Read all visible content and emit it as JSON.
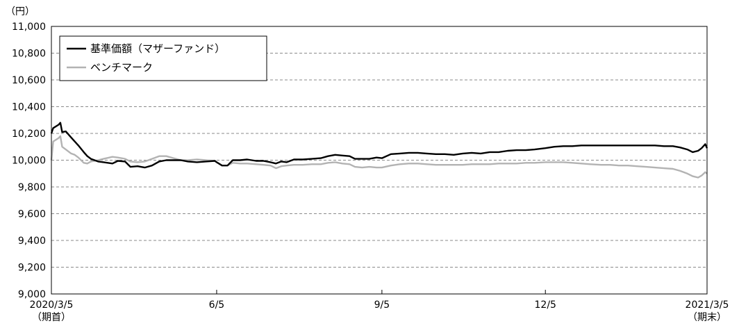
{
  "chart_data": {
    "type": "line",
    "ylabel": "（円）",
    "ylim": [
      9000,
      11000
    ],
    "yticks": [
      9000,
      9200,
      9400,
      9600,
      9800,
      10000,
      10200,
      10400,
      10600,
      10800,
      11000
    ],
    "ytick_labels": [
      "9,000",
      "9,200",
      "9,400",
      "9,600",
      "9,800",
      "10,000",
      "10,200",
      "10,400",
      "10,600",
      "10,800",
      "11,000"
    ],
    "xlim": [
      "2020-03-05",
      "2021-03-05"
    ],
    "xticks": [
      {
        "date": "2020-03-05",
        "label": "2020/3/5",
        "sublabel": "（期首）"
      },
      {
        "date": "2020-06-05",
        "label": "6/5",
        "sublabel": ""
      },
      {
        "date": "2020-09-05",
        "label": "9/5",
        "sublabel": ""
      },
      {
        "date": "2020-12-05",
        "label": "12/5",
        "sublabel": ""
      },
      {
        "date": "2021-03-05",
        "label": "2021/3/5",
        "sublabel": "（期末）"
      }
    ],
    "grid": "horizontal dashed",
    "legend_position": "top-left",
    "series": [
      {
        "name": "基準価額（マザーファンド）",
        "color": "#000000",
        "points": [
          [
            "2020-03-05",
            10200
          ],
          [
            "2020-03-06",
            10240
          ],
          [
            "2020-03-09",
            10265
          ],
          [
            "2020-03-10",
            10280
          ],
          [
            "2020-03-11",
            10210
          ],
          [
            "2020-03-13",
            10215
          ],
          [
            "2020-03-16",
            10170
          ],
          [
            "2020-03-18",
            10140
          ],
          [
            "2020-03-20",
            10110
          ],
          [
            "2020-03-23",
            10060
          ],
          [
            "2020-03-25",
            10030
          ],
          [
            "2020-03-27",
            10010
          ],
          [
            "2020-03-31",
            9990
          ],
          [
            "2020-04-03",
            9985
          ],
          [
            "2020-04-08",
            9975
          ],
          [
            "2020-04-11",
            9995
          ],
          [
            "2020-04-15",
            9990
          ],
          [
            "2020-04-18",
            9950
          ],
          [
            "2020-04-22",
            9955
          ],
          [
            "2020-04-26",
            9945
          ],
          [
            "2020-04-30",
            9960
          ],
          [
            "2020-05-04",
            9990
          ],
          [
            "2020-05-08",
            10000
          ],
          [
            "2020-05-12",
            10000
          ],
          [
            "2020-05-16",
            10000
          ],
          [
            "2020-05-20",
            9990
          ],
          [
            "2020-05-25",
            9985
          ],
          [
            "2020-05-30",
            9990
          ],
          [
            "2020-06-04",
            9995
          ],
          [
            "2020-06-05",
            9985
          ],
          [
            "2020-06-08",
            9960
          ],
          [
            "2020-06-11",
            9960
          ],
          [
            "2020-06-14",
            10000
          ],
          [
            "2020-06-18",
            10000
          ],
          [
            "2020-06-22",
            10005
          ],
          [
            "2020-06-27",
            9995
          ],
          [
            "2020-07-01",
            9995
          ],
          [
            "2020-07-05",
            9985
          ],
          [
            "2020-07-08",
            9975
          ],
          [
            "2020-07-11",
            9990
          ],
          [
            "2020-07-14",
            9985
          ],
          [
            "2020-07-18",
            10005
          ],
          [
            "2020-07-23",
            10005
          ],
          [
            "2020-07-28",
            10010
          ],
          [
            "2020-08-02",
            10015
          ],
          [
            "2020-08-06",
            10030
          ],
          [
            "2020-08-10",
            10040
          ],
          [
            "2020-08-14",
            10035
          ],
          [
            "2020-08-18",
            10030
          ],
          [
            "2020-08-21",
            10010
          ],
          [
            "2020-08-25",
            10010
          ],
          [
            "2020-08-29",
            10010
          ],
          [
            "2020-09-02",
            10020
          ],
          [
            "2020-09-05",
            10015
          ],
          [
            "2020-09-10",
            10045
          ],
          [
            "2020-09-15",
            10050
          ],
          [
            "2020-09-20",
            10055
          ],
          [
            "2020-09-25",
            10055
          ],
          [
            "2020-09-30",
            10050
          ],
          [
            "2020-10-05",
            10045
          ],
          [
            "2020-10-10",
            10045
          ],
          [
            "2020-10-15",
            10040
          ],
          [
            "2020-10-20",
            10050
          ],
          [
            "2020-10-25",
            10055
          ],
          [
            "2020-10-30",
            10050
          ],
          [
            "2020-11-04",
            10060
          ],
          [
            "2020-11-09",
            10060
          ],
          [
            "2020-11-14",
            10070
          ],
          [
            "2020-11-19",
            10075
          ],
          [
            "2020-11-24",
            10075
          ],
          [
            "2020-11-29",
            10080
          ],
          [
            "2020-12-05",
            10090
          ],
          [
            "2020-12-10",
            10100
          ],
          [
            "2020-12-15",
            10105
          ],
          [
            "2020-12-20",
            10105
          ],
          [
            "2020-12-25",
            10110
          ],
          [
            "2020-12-30",
            10110
          ],
          [
            "2021-01-05",
            10110
          ],
          [
            "2021-01-10",
            10110
          ],
          [
            "2021-01-15",
            10110
          ],
          [
            "2021-01-20",
            10110
          ],
          [
            "2021-01-25",
            10110
          ],
          [
            "2021-01-30",
            10110
          ],
          [
            "2021-02-04",
            10110
          ],
          [
            "2021-02-09",
            10105
          ],
          [
            "2021-02-14",
            10105
          ],
          [
            "2021-02-18",
            10095
          ],
          [
            "2021-02-22",
            10080
          ],
          [
            "2021-02-25",
            10060
          ],
          [
            "2021-02-28",
            10070
          ],
          [
            "2021-03-02",
            10090
          ],
          [
            "2021-03-04",
            10120
          ],
          [
            "2021-03-05",
            10090
          ]
        ]
      },
      {
        "name": "ベンチマーク",
        "color": "#b3b3b3",
        "points": [
          [
            "2020-03-05",
            10000
          ],
          [
            "2020-03-06",
            10140
          ],
          [
            "2020-03-09",
            10165
          ],
          [
            "2020-03-10",
            10180
          ],
          [
            "2020-03-11",
            10100
          ],
          [
            "2020-03-13",
            10080
          ],
          [
            "2020-03-16",
            10050
          ],
          [
            "2020-03-18",
            10040
          ],
          [
            "2020-03-20",
            10020
          ],
          [
            "2020-03-23",
            9980
          ],
          [
            "2020-03-25",
            9975
          ],
          [
            "2020-03-27",
            9990
          ],
          [
            "2020-03-31",
            10000
          ],
          [
            "2020-04-03",
            10010
          ],
          [
            "2020-04-08",
            10025
          ],
          [
            "2020-04-11",
            10020
          ],
          [
            "2020-04-15",
            10010
          ],
          [
            "2020-04-18",
            9990
          ],
          [
            "2020-04-22",
            9985
          ],
          [
            "2020-04-26",
            9990
          ],
          [
            "2020-04-30",
            10010
          ],
          [
            "2020-05-04",
            10030
          ],
          [
            "2020-05-08",
            10030
          ],
          [
            "2020-05-12",
            10015
          ],
          [
            "2020-05-16",
            10000
          ],
          [
            "2020-05-20",
            10000
          ],
          [
            "2020-05-25",
            10005
          ],
          [
            "2020-05-30",
            10000
          ],
          [
            "2020-06-04",
            9995
          ],
          [
            "2020-06-05",
            9985
          ],
          [
            "2020-06-08",
            9960
          ],
          [
            "2020-06-11",
            9960
          ],
          [
            "2020-06-14",
            9980
          ],
          [
            "2020-06-18",
            9975
          ],
          [
            "2020-06-22",
            9975
          ],
          [
            "2020-06-27",
            9970
          ],
          [
            "2020-07-01",
            9965
          ],
          [
            "2020-07-05",
            9960
          ],
          [
            "2020-07-08",
            9940
          ],
          [
            "2020-07-11",
            9955
          ],
          [
            "2020-07-14",
            9960
          ],
          [
            "2020-07-18",
            9965
          ],
          [
            "2020-07-23",
            9965
          ],
          [
            "2020-07-28",
            9970
          ],
          [
            "2020-08-02",
            9970
          ],
          [
            "2020-08-06",
            9980
          ],
          [
            "2020-08-10",
            9985
          ],
          [
            "2020-08-14",
            9975
          ],
          [
            "2020-08-18",
            9970
          ],
          [
            "2020-08-21",
            9950
          ],
          [
            "2020-08-25",
            9945
          ],
          [
            "2020-08-29",
            9950
          ],
          [
            "2020-09-02",
            9945
          ],
          [
            "2020-09-05",
            9945
          ],
          [
            "2020-09-10",
            9960
          ],
          [
            "2020-09-15",
            9970
          ],
          [
            "2020-09-20",
            9975
          ],
          [
            "2020-09-25",
            9975
          ],
          [
            "2020-09-30",
            9970
          ],
          [
            "2020-10-05",
            9965
          ],
          [
            "2020-10-10",
            9965
          ],
          [
            "2020-10-15",
            9965
          ],
          [
            "2020-10-20",
            9965
          ],
          [
            "2020-10-25",
            9970
          ],
          [
            "2020-10-30",
            9970
          ],
          [
            "2020-11-04",
            9970
          ],
          [
            "2020-11-09",
            9975
          ],
          [
            "2020-11-14",
            9975
          ],
          [
            "2020-11-19",
            9975
          ],
          [
            "2020-11-24",
            9980
          ],
          [
            "2020-11-29",
            9980
          ],
          [
            "2020-12-05",
            9985
          ],
          [
            "2020-12-10",
            9985
          ],
          [
            "2020-12-15",
            9985
          ],
          [
            "2020-12-20",
            9980
          ],
          [
            "2020-12-25",
            9975
          ],
          [
            "2020-12-30",
            9970
          ],
          [
            "2021-01-05",
            9965
          ],
          [
            "2021-01-10",
            9965
          ],
          [
            "2021-01-15",
            9960
          ],
          [
            "2021-01-20",
            9960
          ],
          [
            "2021-01-25",
            9955
          ],
          [
            "2021-01-30",
            9950
          ],
          [
            "2021-02-04",
            9945
          ],
          [
            "2021-02-09",
            9940
          ],
          [
            "2021-02-14",
            9935
          ],
          [
            "2021-02-18",
            9920
          ],
          [
            "2021-02-22",
            9900
          ],
          [
            "2021-02-25",
            9880
          ],
          [
            "2021-02-28",
            9870
          ],
          [
            "2021-03-02",
            9885
          ],
          [
            "2021-03-04",
            9910
          ],
          [
            "2021-03-05",
            9900
          ]
        ]
      }
    ]
  }
}
